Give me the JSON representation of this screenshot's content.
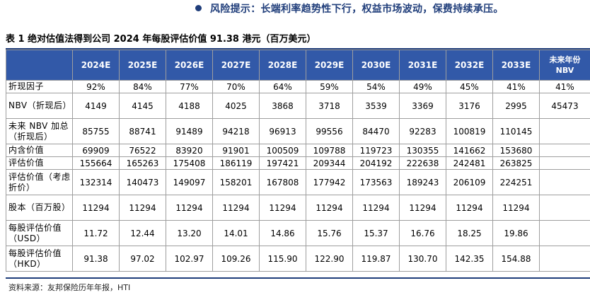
{
  "risk_text": "风险提示：长端利率趋势性下行，权益市场波动，保费持续承压。",
  "table_title": "表 1  绝对估值法得到公司 2024 年每股评估价值 91.38 港元（百万美元）",
  "columns": [
    "",
    "2024E",
    "2025E",
    "2026E",
    "2027E",
    "2028E",
    "2029E",
    "2030E",
    "2031E",
    "2032E",
    "2033E",
    "未来年份 NBV"
  ],
  "rows": [
    {
      "label": "折现因子",
      "values": [
        "92%",
        "84%",
        "77%",
        "70%",
        "64%",
        "59%",
        "54%",
        "49%",
        "45%",
        "41%",
        "41%"
      ]
    },
    {
      "label": "NBV（折现后）",
      "values": [
        "4149",
        "4145",
        "4188",
        "4025",
        "3868",
        "3718",
        "3539",
        "3369",
        "3176",
        "2995",
        "45473"
      ]
    },
    {
      "label": "未来 NBV 加总（折现后）",
      "values": [
        "85755",
        "88741",
        "91489",
        "94218",
        "96913",
        "99556",
        "84470",
        "92283",
        "100819",
        "110145",
        ""
      ]
    },
    {
      "label": "内含价值",
      "values": [
        "69909",
        "76522",
        "83920",
        "91901",
        "100509",
        "109788",
        "119723",
        "130355",
        "141662",
        "153680",
        ""
      ]
    },
    {
      "label": "评估价值",
      "values": [
        "155664",
        "165263",
        "175408",
        "186119",
        "197421",
        "209344",
        "204192",
        "222638",
        "242481",
        "263825",
        ""
      ]
    },
    {
      "label": "评估价值（考虑折价）",
      "values": [
        "132314",
        "140473",
        "149097",
        "158201",
        "167808",
        "177942",
        "173563",
        "189243",
        "206109",
        "224251",
        ""
      ]
    },
    {
      "label": "股本（百万股）",
      "values": [
        "11294",
        "11294",
        "11294",
        "11294",
        "11294",
        "11294",
        "11294",
        "11294",
        "11294",
        "11294",
        ""
      ]
    },
    {
      "label": "每股评估价值（USD）",
      "values": [
        "11.72",
        "12.44",
        "13.20",
        "14.01",
        "14.86",
        "15.76",
        "15.37",
        "16.76",
        "18.25",
        "19.86",
        ""
      ]
    },
    {
      "label": "每股评估价值（HKD）",
      "values": [
        "91.38",
        "97.02",
        "102.97",
        "109.26",
        "115.90",
        "122.90",
        "119.87",
        "130.70",
        "142.35",
        "154.88",
        ""
      ]
    }
  ],
  "source": "资料来源：友邦保险历年年报，HTI",
  "colors": {
    "header_bg": "#3259a8",
    "accent": "#1f3d7a"
  }
}
